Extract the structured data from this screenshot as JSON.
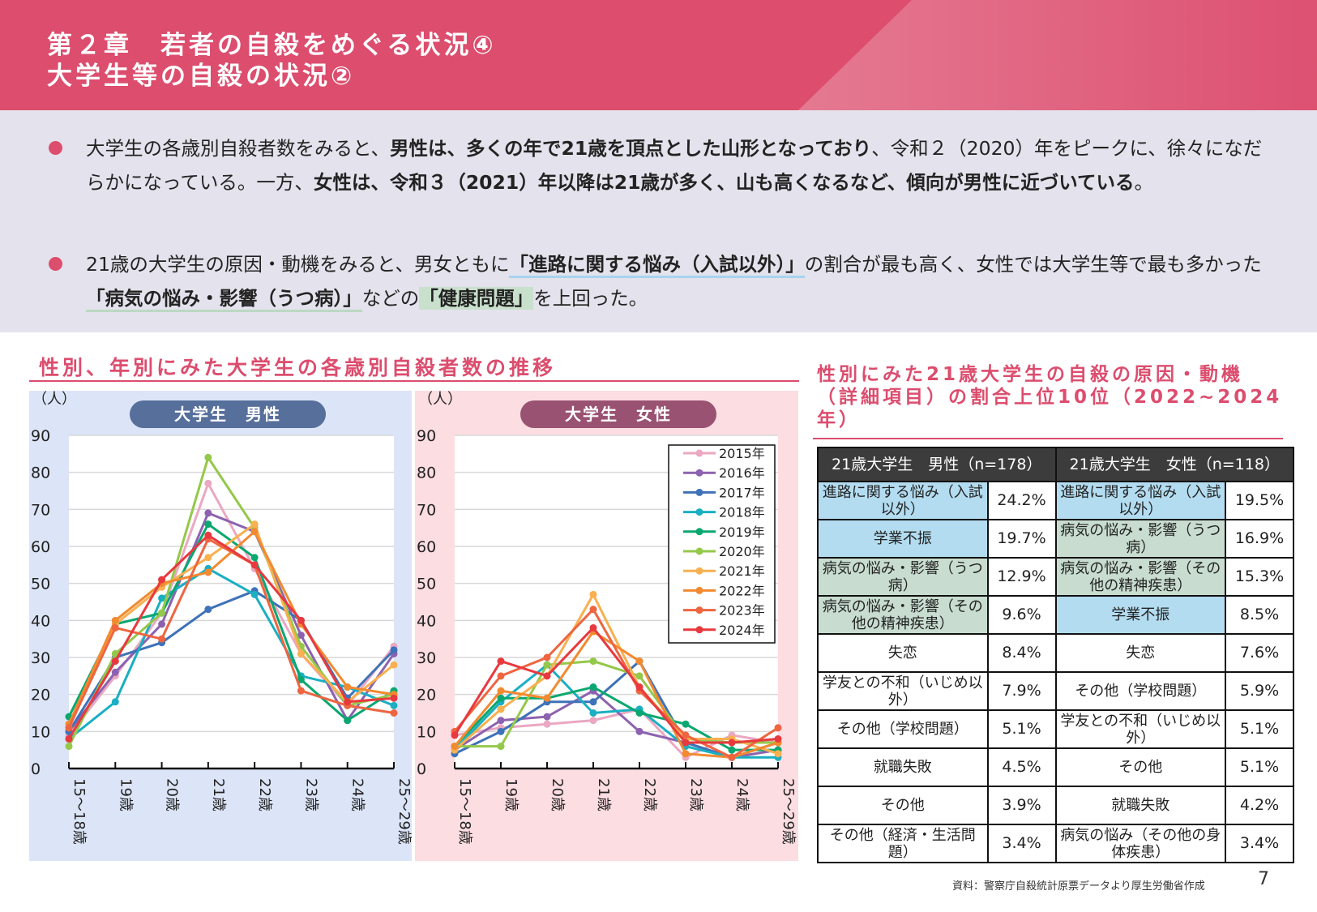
{
  "header": {
    "title_line1": "第２章　若者の自殺をめぐる状況④",
    "title_line2": "大学生等の自殺の状況②",
    "color": "#dc4d6e"
  },
  "bullets": [
    {
      "segments": [
        {
          "text": "大学生の各歳別自殺者数をみると、",
          "style": "normal"
        },
        {
          "text": "男性は、多くの年で21歳を頂点とした山形となっており",
          "style": "bold"
        },
        {
          "text": "、令和２（2020）年をピークに、徐々になだらかになっている。一方、",
          "style": "normal"
        },
        {
          "text": "女性は、令和３（2021）年以降は21歳が多く、山も高くなるなど、傾向が男性に近づいている",
          "style": "bold"
        },
        {
          "text": "。",
          "style": "normal"
        }
      ]
    },
    {
      "segments": [
        {
          "text": "21歳の大学生の原因・動機をみると、男女ともに",
          "style": "normal"
        },
        {
          "text": "「進路に関する悩み（入試以外）」",
          "style": "bold"
        },
        {
          "text": "の割合が最も高く、女性では大学生等で最も多かった",
          "style": "normal"
        },
        {
          "text": "「病気の悩み・影響（うつ病）」",
          "style": "bold"
        },
        {
          "text": "などの",
          "style": "normal"
        },
        {
          "text": "「健康問題」",
          "style": "bold"
        },
        {
          "text": "を上回った。",
          "style": "normal"
        }
      ]
    }
  ],
  "left_section_title": "性別、年別にみた大学生の各歳別自殺者数の推移",
  "right_section_title": "性別にみた21歳大学生の自殺の原因・動機（詳細項目）の割合上位10位（2022~2024年）",
  "chart_data": [
    {
      "type": "line",
      "title": "大学生　男性",
      "ylabel": "（人）",
      "ylim": [
        0,
        90
      ],
      "yticks": [
        0,
        10,
        20,
        30,
        40,
        50,
        60,
        70,
        80,
        90
      ],
      "grid": true,
      "categories": [
        "15～18歳",
        "19歳",
        "20歳",
        "21歳",
        "22歳",
        "23歳",
        "24歳",
        "25～29歳"
      ],
      "series": [
        {
          "name": "2015年",
          "color": "#eaa8c2",
          "values": [
            9,
            25,
            42,
            77,
            54,
            31,
            17,
            33
          ]
        },
        {
          "name": "2016年",
          "color": "#8c62b0",
          "values": [
            10,
            26,
            39,
            69,
            64,
            36,
            13,
            31
          ]
        },
        {
          "name": "2017年",
          "color": "#3e72b9",
          "values": [
            10,
            30,
            34,
            43,
            48,
            40,
            19,
            32
          ]
        },
        {
          "name": "2018年",
          "color": "#1aafc2",
          "values": [
            8,
            18,
            46,
            54,
            47,
            25,
            22,
            17
          ]
        },
        {
          "name": "2019年",
          "color": "#0aa870",
          "values": [
            14,
            39,
            42,
            66,
            57,
            24,
            13,
            21
          ]
        },
        {
          "name": "2020年",
          "color": "#94c84a",
          "values": [
            6,
            31,
            42,
            84,
            65,
            33,
            17,
            20
          ]
        },
        {
          "name": "2021年",
          "color": "#f8b050",
          "values": [
            11,
            39,
            49,
            57,
            66,
            31,
            18,
            28
          ]
        },
        {
          "name": "2022年",
          "color": "#f28a30",
          "values": [
            12,
            40,
            50,
            53,
            64,
            39,
            22,
            20
          ]
        },
        {
          "name": "2023年",
          "color": "#ee6540",
          "values": [
            11,
            38,
            35,
            62,
            55,
            21,
            17,
            15
          ]
        },
        {
          "name": "2024年",
          "color": "#e8393f",
          "values": [
            8,
            29,
            51,
            63,
            55,
            40,
            18,
            19
          ]
        }
      ]
    },
    {
      "type": "line",
      "title": "大学生　女性",
      "ylabel": "（人）",
      "ylim": [
        0,
        90
      ],
      "yticks": [
        0,
        10,
        20,
        30,
        40,
        50,
        60,
        70,
        80,
        90
      ],
      "grid": true,
      "legend": "top-right",
      "categories": [
        "15～18歳",
        "19歳",
        "20歳",
        "21歳",
        "22歳",
        "23歳",
        "24歳",
        "25～29歳"
      ],
      "series": [
        {
          "name": "2015年",
          "color": "#eaa8c2",
          "values": [
            9,
            11,
            12,
            13,
            16,
            3,
            9,
            7
          ]
        },
        {
          "name": "2016年",
          "color": "#8c62b0",
          "values": [
            5,
            13,
            14,
            21,
            10,
            7,
            3,
            5
          ]
        },
        {
          "name": "2017年",
          "color": "#3e72b9",
          "values": [
            4,
            10,
            18,
            18,
            29,
            7,
            3,
            7
          ]
        },
        {
          "name": "2018年",
          "color": "#1aafc2",
          "values": [
            5,
            18,
            28,
            15,
            16,
            6,
            3,
            3
          ]
        },
        {
          "name": "2019年",
          "color": "#0aa870",
          "values": [
            6,
            19,
            19,
            22,
            15,
            12,
            5,
            5
          ]
        },
        {
          "name": "2020年",
          "color": "#94c84a",
          "values": [
            6,
            6,
            28,
            29,
            25,
            8,
            7,
            7
          ]
        },
        {
          "name": "2021年",
          "color": "#f8b050",
          "values": [
            5,
            16,
            25,
            47,
            22,
            8,
            8,
            4
          ]
        },
        {
          "name": "2022年",
          "color": "#f28a30",
          "values": [
            6,
            21,
            19,
            37,
            29,
            4,
            3,
            7
          ]
        },
        {
          "name": "2023年",
          "color": "#ee6540",
          "values": [
            10,
            25,
            30,
            43,
            21,
            9,
            3,
            11
          ]
        },
        {
          "name": "2024年",
          "color": "#e8393f",
          "values": [
            9,
            29,
            25,
            38,
            22,
            7,
            7,
            8
          ]
        }
      ]
    }
  ],
  "table": {
    "headers": [
      "21歳大学生　男性（n=178）",
      "21歳大学生　女性（n=118）"
    ],
    "highlight_colors": {
      "school": "#b3dcf0",
      "health": "#c8ddd0"
    },
    "rows": [
      {
        "m": "進路に関する悩み（入試以外）",
        "mv": "24.2%",
        "mh": "school",
        "f": "進路に関する悩み（入試以外）",
        "fv": "19.5%",
        "fh": "school"
      },
      {
        "m": "学業不振",
        "mv": "19.7%",
        "mh": "school",
        "f": "病気の悩み・影響（うつ病）",
        "fv": "16.9%",
        "fh": "health"
      },
      {
        "m": "病気の悩み・影響（うつ病）",
        "mv": "12.9%",
        "mh": "health",
        "f": "病気の悩み・影響（その他の精神疾患）",
        "fv": "15.3%",
        "fh": "health"
      },
      {
        "m": "病気の悩み・影響（その他の精神疾患）",
        "mv": "9.6%",
        "mh": "health",
        "f": "学業不振",
        "fv": "8.5%",
        "fh": "school"
      },
      {
        "m": "失恋",
        "mv": "8.4%",
        "mh": "",
        "f": "失恋",
        "fv": "7.6%",
        "fh": ""
      },
      {
        "m": "学友との不和（いじめ以外）",
        "mv": "7.9%",
        "mh": "",
        "f": "その他（学校問題）",
        "fv": "5.9%",
        "fh": ""
      },
      {
        "m": "その他（学校問題）",
        "mv": "5.1%",
        "mh": "",
        "f": "学友との不和（いじめ以外）",
        "fv": "5.1%",
        "fh": ""
      },
      {
        "m": "就職失敗",
        "mv": "4.5%",
        "mh": "",
        "f": "その他",
        "fv": "5.1%",
        "fh": ""
      },
      {
        "m": "その他",
        "mv": "3.9%",
        "mh": "",
        "f": "就職失敗",
        "fv": "4.2%",
        "fh": ""
      },
      {
        "m": "その他（経済・生活問題）",
        "mv": "3.4%",
        "mh": "",
        "f": "病気の悩み（その他の身体疾患）",
        "fv": "3.4%",
        "fh": ""
      }
    ]
  },
  "footer": {
    "source": "資料：警察庁自殺統計原票データより厚生労働省作成",
    "page": "7"
  }
}
